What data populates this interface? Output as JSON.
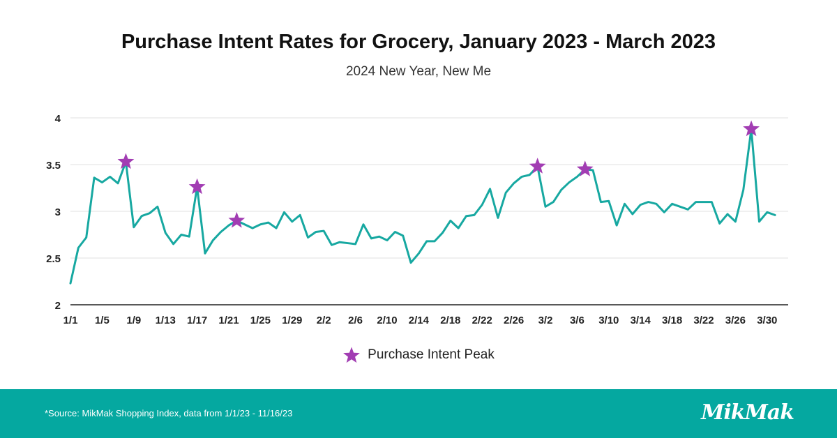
{
  "colors": {
    "line": "#17a8a1",
    "marker": "#a23db3",
    "footer": "#05a8a0",
    "grid": "#e2e2e2"
  },
  "footer": {
    "source": "*Source: MikMak Shopping Index, data from 1/1/23 - 11/16/23",
    "logo": "MikMak"
  },
  "chart_data": {
    "type": "line",
    "title": "Purchase Intent Rates for Grocery, January 2023 - March 2023",
    "subtitle": "2024 New Year, New Me",
    "xlabel": "",
    "ylabel": "",
    "ylim": [
      2,
      4
    ],
    "yticks": [
      2,
      2.5,
      3,
      3.5,
      4
    ],
    "grid": true,
    "legend_position": "bottom",
    "x_tick_labels": [
      "1/1",
      "1/5",
      "1/9",
      "1/13",
      "1/17",
      "1/21",
      "1/25",
      "1/29",
      "2/2",
      "2/6",
      "2/10",
      "2/14",
      "2/18",
      "2/22",
      "2/26",
      "3/2",
      "3/6",
      "3/10",
      "3/14",
      "3/18",
      "3/22",
      "3/26",
      "3/30"
    ],
    "x_tick_start_day": [
      1,
      5,
      9,
      13,
      17,
      21,
      25,
      29,
      33,
      37,
      41,
      45,
      49,
      53,
      57,
      61,
      65,
      69,
      73,
      77,
      81,
      85,
      89
    ],
    "values": [
      2.23,
      2.61,
      2.72,
      3.36,
      3.31,
      3.37,
      3.3,
      3.53,
      2.83,
      2.95,
      2.98,
      3.05,
      2.77,
      2.65,
      2.75,
      2.73,
      3.26,
      2.55,
      2.69,
      2.78,
      2.85,
      2.9,
      2.86,
      2.82,
      2.86,
      2.88,
      2.82,
      2.99,
      2.89,
      2.96,
      2.72,
      2.78,
      2.79,
      2.64,
      2.67,
      2.66,
      2.65,
      2.86,
      2.71,
      2.73,
      2.69,
      2.78,
      2.74,
      2.45,
      2.55,
      2.68,
      2.68,
      2.77,
      2.9,
      2.82,
      2.95,
      2.96,
      3.07,
      3.24,
      2.93,
      3.2,
      3.3,
      3.37,
      3.39,
      3.48,
      3.05,
      3.1,
      3.23,
      3.31,
      3.37,
      3.45,
      3.44,
      3.1,
      3.11,
      2.85,
      3.08,
      2.97,
      3.07,
      3.1,
      3.08,
      2.99,
      3.08,
      3.05,
      3.02,
      3.1,
      3.1,
      3.1,
      2.87,
      2.97,
      2.89,
      3.23,
      3.88,
      2.89,
      2.99,
      2.96
    ],
    "peaks": [
      {
        "day": 8,
        "value": 3.53
      },
      {
        "day": 17,
        "value": 3.26
      },
      {
        "day": 22,
        "value": 2.9
      },
      {
        "day": 60,
        "value": 3.48
      },
      {
        "day": 66,
        "value": 3.45
      },
      {
        "day": 87,
        "value": 3.88
      }
    ],
    "legend": [
      {
        "name": "Purchase Intent Peak"
      }
    ]
  }
}
